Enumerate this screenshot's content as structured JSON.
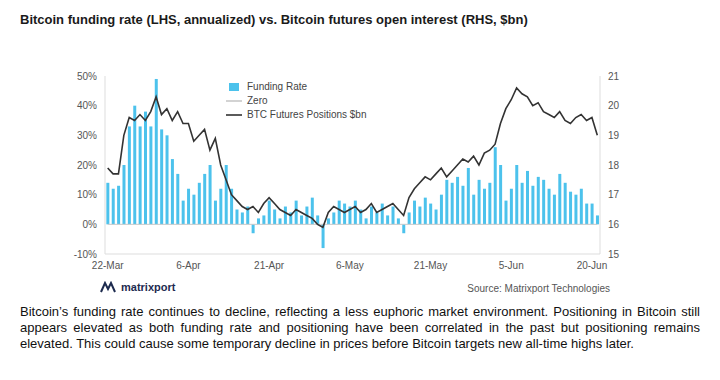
{
  "chart_data": {
    "type": "bar",
    "title": "Bitcoin funding rate (LHS, annualized) vs. Bitcoin futures open interest (RHS, $bn)",
    "source": "Source: Matrixport Technologies",
    "logo": "matrixport",
    "caption": "Bitcoin’s funding rate continues to decline, reflecting a less euphoric market environment. Positioning in Bitcoin still appears elevated as both funding rate and positioning have been correlated in the past but positioning remains elevated. This could cause some temporary decline in prices before Bitcoin targets new all-time highs later.",
    "categories": [
      "22-Mar",
      null,
      null,
      null,
      null,
      null,
      null,
      null,
      null,
      null,
      null,
      null,
      null,
      null,
      null,
      "6-Apr",
      null,
      null,
      null,
      null,
      null,
      null,
      null,
      null,
      null,
      null,
      null,
      null,
      null,
      null,
      "21-Apr",
      null,
      null,
      null,
      null,
      null,
      null,
      null,
      null,
      null,
      null,
      null,
      null,
      null,
      null,
      "6-May",
      null,
      null,
      null,
      null,
      null,
      null,
      null,
      null,
      null,
      null,
      null,
      null,
      null,
      null,
      "21-May",
      null,
      null,
      null,
      null,
      null,
      null,
      null,
      null,
      null,
      null,
      null,
      null,
      null,
      null,
      "5-Jun",
      null,
      null,
      null,
      null,
      null,
      null,
      null,
      null,
      null,
      null,
      null,
      null,
      null,
      null,
      "20-Jun",
      null
    ],
    "series": [
      {
        "name": "Funding Rate",
        "type": "bar",
        "color": "#4cc2ec",
        "values": [
          14,
          12,
          13,
          20,
          33,
          40,
          33,
          38,
          33,
          49,
          32,
          30,
          22,
          17,
          8,
          12,
          10,
          14,
          17,
          20,
          8,
          12,
          20,
          12,
          5,
          4,
          6,
          -3,
          2,
          3,
          8,
          5,
          2,
          6,
          4,
          8,
          3,
          6,
          9,
          3,
          -8,
          2,
          4,
          8,
          7,
          6,
          8,
          5,
          2,
          6,
          4,
          7,
          3,
          6,
          2,
          -3,
          4,
          8,
          6,
          9,
          7,
          5,
          10,
          15,
          14,
          16,
          13,
          19,
          10,
          15,
          12,
          14,
          26,
          20,
          8,
          12,
          20,
          14,
          18,
          13,
          16,
          15,
          12,
          10,
          17,
          14,
          11,
          10,
          12,
          7,
          7,
          3
        ]
      },
      {
        "name": "Zero",
        "type": "line",
        "color": "#c8c8c8",
        "values": [
          0,
          0,
          0,
          0,
          0,
          0,
          0,
          0,
          0,
          0,
          0,
          0,
          0,
          0,
          0,
          0,
          0,
          0,
          0,
          0,
          0,
          0,
          0,
          0,
          0,
          0,
          0,
          0,
          0,
          0,
          0,
          0,
          0,
          0,
          0,
          0,
          0,
          0,
          0,
          0,
          0,
          0,
          0,
          0,
          0,
          0,
          0,
          0,
          0,
          0,
          0,
          0,
          0,
          0,
          0,
          0,
          0,
          0,
          0,
          0,
          0,
          0,
          0,
          0,
          0,
          0,
          0,
          0,
          0,
          0,
          0,
          0,
          0,
          0,
          0,
          0,
          0,
          0,
          0,
          0,
          0,
          0,
          0,
          0,
          0,
          0,
          0,
          0,
          0,
          0,
          0,
          0
        ]
      },
      {
        "name": "BTC Futures Positions $bn",
        "type": "line",
        "color": "#333333",
        "axis": "y2",
        "values": [
          17.9,
          17.7,
          17.7,
          19.0,
          19.6,
          19.5,
          19.7,
          19.5,
          19.8,
          20.3,
          19.7,
          19.9,
          19.5,
          19.8,
          19.4,
          19.4,
          18.8,
          19.0,
          19.2,
          18.5,
          18.9,
          18.0,
          17.5,
          17.0,
          16.8,
          16.6,
          16.5,
          16.6,
          16.4,
          16.7,
          16.9,
          16.7,
          16.5,
          16.4,
          16.3,
          16.5,
          16.4,
          16.3,
          16.2,
          16.0,
          15.9,
          16.4,
          16.6,
          16.5,
          16.4,
          16.5,
          16.6,
          16.4,
          16.5,
          16.7,
          16.4,
          16.5,
          16.6,
          16.7,
          16.5,
          16.3,
          16.9,
          17.2,
          17.4,
          17.6,
          17.5,
          17.7,
          17.9,
          17.6,
          17.8,
          18.0,
          18.2,
          18.1,
          18.3,
          18.0,
          18.4,
          18.5,
          18.7,
          19.4,
          19.9,
          20.2,
          20.6,
          20.4,
          20.3,
          20.0,
          20.1,
          19.8,
          19.7,
          19.6,
          19.8,
          19.5,
          19.4,
          19.6,
          19.7,
          19.5,
          19.6,
          19.0
        ]
      }
    ],
    "ylim": [
      -10,
      50
    ],
    "yticks": [
      {
        "value": -10,
        "label": "-10%"
      },
      {
        "value": 0,
        "label": "0%"
      },
      {
        "value": 10,
        "label": "10%"
      },
      {
        "value": 20,
        "label": "20%"
      },
      {
        "value": 30,
        "label": "30%"
      },
      {
        "value": 40,
        "label": "40%"
      },
      {
        "value": 50,
        "label": "50%"
      }
    ],
    "y2lim": [
      15,
      21
    ],
    "y2ticks": [
      15,
      16,
      17,
      18,
      19,
      20,
      21
    ],
    "grid": false,
    "legend": "upper left"
  }
}
